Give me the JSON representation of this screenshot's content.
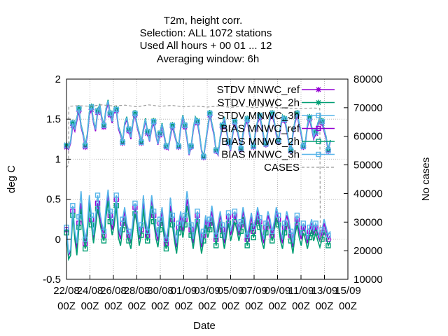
{
  "chart_data": {
    "type": "line",
    "title_lines": [
      "T2m, height corr.",
      "Selection: ALL    1072 stations",
      "Used  All hours  + 00 01 ... 12",
      "Averaging window:  6h"
    ],
    "xlabel": "Date",
    "ylabel": "deg C",
    "y2label": "No cases",
    "ylim": [
      -0.5,
      2
    ],
    "y_ticks": [
      "-0.5",
      "0",
      "0.5",
      "1",
      "1.5",
      "2"
    ],
    "y2lim": [
      10000,
      80000
    ],
    "y2_ticks": [
      "10000",
      "20000",
      "30000",
      "40000",
      "50000",
      "60000",
      "70000",
      "80000"
    ],
    "xlim": [
      0,
      48
    ],
    "x_ticks": [
      {
        "x": 0,
        "date": "22/08",
        "hour": "00Z"
      },
      {
        "x": 4,
        "date": "24/08",
        "hour": "00Z"
      },
      {
        "x": 8,
        "date": "26/08",
        "hour": "00Z"
      },
      {
        "x": 12,
        "date": "28/08",
        "hour": "00Z"
      },
      {
        "x": 16,
        "date": "30/08",
        "hour": "00Z"
      },
      {
        "x": 20,
        "date": "01/09",
        "hour": "00Z"
      },
      {
        "x": 24,
        "date": "03/09",
        "hour": "00Z"
      },
      {
        "x": 28,
        "date": "05/09",
        "hour": "00Z"
      },
      {
        "x": 32,
        "date": "07/09",
        "hour": "00Z"
      },
      {
        "x": 36,
        "date": "09/09",
        "hour": "00Z"
      },
      {
        "x": 40,
        "date": "11/09",
        "hour": "00Z"
      },
      {
        "x": 44,
        "date": "13/09",
        "hour": "00Z"
      },
      {
        "x": 48,
        "date": "15/09",
        "hour": "00Z"
      }
    ],
    "grid": true,
    "legend_position": "top-right",
    "series": [
      {
        "name": "STDV MNWC_ref",
        "axis": "y",
        "color": "#9400d3",
        "marker": "star",
        "values": [
          1.15,
          1.12,
          1.2,
          1.42,
          1.35,
          1.48,
          1.6,
          1.4,
          1.3,
          1.15,
          1.28,
          1.55,
          1.62,
          1.45,
          1.35,
          1.58,
          1.65,
          1.5,
          1.4,
          1.6,
          1.7,
          1.55,
          1.45,
          1.62,
          1.6,
          1.38,
          1.3,
          1.2,
          1.42,
          1.5,
          1.35,
          1.25,
          1.45,
          1.55,
          1.4,
          1.3,
          1.2,
          1.35,
          1.48,
          1.32,
          1.22,
          1.38,
          1.45,
          1.3,
          1.18,
          1.3,
          1.42,
          1.28,
          1.15,
          1.12,
          1.28,
          1.4,
          1.3,
          1.2,
          1.15,
          1.38,
          1.52,
          1.4,
          1.25,
          1.05,
          1.15,
          1.35,
          1.5,
          1.45,
          1.3,
          1.1,
          1.02,
          1.2,
          1.38,
          1.55,
          1.42,
          1.3,
          1.1,
          1.05,
          1.25,
          1.4,
          1.5,
          1.35,
          1.2,
          1.1,
          1.3,
          1.45,
          1.38,
          1.25,
          1.12,
          1.3,
          1.42,
          1.48,
          1.32,
          1.2,
          1.15,
          1.32,
          1.45,
          1.52,
          1.4,
          1.25,
          1.18,
          1.35,
          1.5,
          1.55,
          1.45,
          1.3,
          1.22,
          1.38,
          1.52,
          1.48,
          1.35,
          1.2,
          1.1,
          1.3,
          1.45,
          1.55,
          1.42,
          1.3,
          1.15,
          1.2,
          1.4,
          1.5,
          1.38,
          1.25,
          1.32,
          1.42,
          1.5,
          1.45,
          1.35,
          1.25,
          1.1,
          1.22
        ]
      },
      {
        "name": "STDV MNWC_2h",
        "axis": "y",
        "color": "#009e73",
        "marker": "star",
        "values": [
          1.18,
          1.14,
          1.23,
          1.46,
          1.38,
          1.52,
          1.64,
          1.43,
          1.33,
          1.18,
          1.31,
          1.59,
          1.66,
          1.48,
          1.38,
          1.61,
          1.69,
          1.53,
          1.43,
          1.63,
          1.74,
          1.58,
          1.48,
          1.65,
          1.63,
          1.41,
          1.33,
          1.22,
          1.45,
          1.53,
          1.38,
          1.28,
          1.48,
          1.58,
          1.43,
          1.33,
          1.22,
          1.38,
          1.51,
          1.35,
          1.24,
          1.41,
          1.48,
          1.33,
          1.2,
          1.33,
          1.45,
          1.31,
          1.17,
          1.14,
          1.31,
          1.43,
          1.33,
          1.22,
          1.17,
          1.41,
          1.55,
          1.43,
          1.28,
          1.07,
          1.17,
          1.38,
          1.53,
          1.48,
          1.33,
          1.12,
          1.04,
          1.22,
          1.41,
          1.58,
          1.45,
          1.33,
          1.12,
          1.07,
          1.28,
          1.43,
          1.53,
          1.38,
          1.22,
          1.12,
          1.33,
          1.48,
          1.41,
          1.28,
          1.14,
          1.33,
          1.45,
          1.51,
          1.35,
          1.22,
          1.17,
          1.35,
          1.48,
          1.55,
          1.43,
          1.28,
          1.2,
          1.38,
          1.53,
          1.58,
          1.48,
          1.33,
          1.24,
          1.41,
          1.55,
          1.51,
          1.38,
          1.22,
          1.12,
          1.33,
          1.48,
          1.58,
          1.45,
          1.33,
          1.17,
          1.22,
          1.43,
          1.53,
          1.41,
          1.28,
          1.35,
          1.45,
          1.53,
          1.48,
          1.38,
          1.28,
          1.12,
          1.24
        ]
      },
      {
        "name": "STDV MNWC_3h",
        "axis": "y",
        "color": "#56b4e9",
        "marker": "box",
        "values": [
          1.17,
          1.13,
          1.22,
          1.45,
          1.37,
          1.51,
          1.63,
          1.42,
          1.32,
          1.17,
          1.3,
          1.58,
          1.65,
          1.47,
          1.37,
          1.6,
          1.68,
          1.52,
          1.42,
          1.62,
          1.73,
          1.57,
          1.47,
          1.64,
          1.62,
          1.4,
          1.32,
          1.21,
          1.44,
          1.52,
          1.37,
          1.27,
          1.47,
          1.57,
          1.42,
          1.32,
          1.21,
          1.37,
          1.5,
          1.34,
          1.23,
          1.4,
          1.47,
          1.32,
          1.19,
          1.32,
          1.44,
          1.3,
          1.16,
          1.13,
          1.3,
          1.42,
          1.32,
          1.21,
          1.16,
          1.4,
          1.54,
          1.42,
          1.27,
          1.06,
          1.16,
          1.37,
          1.52,
          1.47,
          1.32,
          1.11,
          1.03,
          1.21,
          1.4,
          1.57,
          1.44,
          1.32,
          1.11,
          1.06,
          1.27,
          1.42,
          1.52,
          1.37,
          1.21,
          1.11,
          1.32,
          1.47,
          1.4,
          1.27,
          1.13,
          1.32,
          1.44,
          1.5,
          1.34,
          1.21,
          1.16,
          1.34,
          1.47,
          1.54,
          1.42,
          1.27,
          1.19,
          1.37,
          1.52,
          1.57,
          1.47,
          1.32,
          1.23,
          1.4,
          1.54,
          1.5,
          1.37,
          1.21,
          1.11,
          1.32,
          1.47,
          1.57,
          1.44,
          1.32,
          1.16,
          1.21,
          1.42,
          1.52,
          1.4,
          1.27,
          1.34,
          1.44,
          1.52,
          1.47,
          1.37,
          1.27,
          1.11,
          1.23
        ]
      },
      {
        "name": "BIAS MNWC_ref",
        "axis": "y",
        "color": "#9400d3",
        "marker": "box",
        "values": [
          0.12,
          -0.2,
          -0.15,
          0.35,
          0.05,
          -0.12,
          0.2,
          0.45,
          0.15,
          -0.05,
          0.1,
          0.5,
          0.25,
          0.0,
          0.22,
          0.45,
          0.3,
          0.15,
          0.05,
          0.35,
          0.55,
          0.3,
          0.12,
          0.25,
          0.5,
          0.1,
          0.0,
          0.2,
          0.35,
          0.15,
          0.05,
          -0.05,
          0.2,
          0.4,
          0.25,
          0.0,
          0.12,
          0.45,
          0.2,
          0.05,
          0.25,
          0.5,
          0.3,
          0.1,
          -0.02,
          0.2,
          0.35,
          0.1,
          -0.05,
          0.1,
          0.42,
          0.25,
          0.05,
          -0.1,
          0.15,
          0.3,
          0.1,
          0.25,
          0.5,
          0.35,
          0.12,
          -0.05,
          0.15,
          0.3,
          0.1,
          -0.1,
          0.05,
          0.25,
          0.1,
          0.2,
          0.35,
          0.18,
          0.0,
          0.15,
          0.3,
          0.12,
          -0.05,
          0.12,
          0.28,
          0.05,
          0.15,
          0.3,
          0.2,
          0.05,
          0.18,
          0.35,
          0.2,
          0.0,
          0.12,
          0.28,
          0.1,
          0.2,
          0.35,
          0.22,
          0.05,
          -0.05,
          0.15,
          0.3,
          0.2,
          0.05,
          0.18,
          0.35,
          0.25,
          0.05,
          -0.05,
          0.15,
          0.3,
          0.2,
          0.05,
          -0.1,
          0.12,
          0.25,
          0.1,
          0.0,
          0.15,
          0.08,
          -0.05,
          0.1,
          0.2,
          0.05,
          0.15,
          0.05,
          -0.02,
          0.08,
          0.2,
          0.1,
          0.0,
          0.05
        ]
      },
      {
        "name": "BIAS MNWC_2h",
        "axis": "y",
        "color": "#009e73",
        "marker": "box",
        "values": [
          0.08,
          -0.25,
          -0.2,
          0.3,
          0.0,
          -0.2,
          0.15,
          0.38,
          0.1,
          -0.12,
          0.05,
          0.45,
          0.18,
          -0.05,
          0.15,
          0.38,
          0.22,
          0.08,
          -0.02,
          0.28,
          0.48,
          0.22,
          0.05,
          0.18,
          0.42,
          0.02,
          -0.08,
          0.12,
          0.28,
          0.08,
          -0.02,
          -0.12,
          0.12,
          0.32,
          0.18,
          -0.08,
          0.05,
          0.38,
          0.12,
          -0.02,
          0.18,
          0.42,
          0.22,
          0.02,
          -0.1,
          0.12,
          0.28,
          0.02,
          -0.12,
          0.02,
          0.35,
          0.18,
          -0.02,
          -0.18,
          0.08,
          0.22,
          0.02,
          0.18,
          0.42,
          0.28,
          0.05,
          -0.12,
          0.08,
          0.22,
          0.02,
          -0.18,
          -0.02,
          0.18,
          0.02,
          0.12,
          0.28,
          0.1,
          -0.08,
          0.08,
          0.22,
          0.05,
          -0.12,
          0.05,
          0.2,
          -0.02,
          0.08,
          0.22,
          0.12,
          -0.02,
          0.1,
          0.28,
          0.12,
          -0.08,
          0.05,
          0.2,
          0.02,
          0.12,
          0.28,
          0.15,
          -0.02,
          -0.12,
          0.08,
          0.22,
          0.12,
          -0.02,
          0.1,
          0.28,
          0.18,
          -0.02,
          -0.12,
          0.08,
          0.22,
          0.12,
          -0.02,
          -0.18,
          0.05,
          0.18,
          0.02,
          -0.08,
          0.08,
          0.0,
          -0.12,
          0.02,
          0.12,
          -0.02,
          0.08,
          -0.02,
          -0.1,
          0.0,
          0.12,
          0.02,
          -0.08,
          -0.02
        ]
      },
      {
        "name": "BIAS MNWC_3h",
        "axis": "y",
        "color": "#56b4e9",
        "marker": "box",
        "values": [
          0.15,
          -0.18,
          -0.12,
          0.42,
          0.1,
          -0.05,
          0.28,
          0.6,
          0.2,
          0.0,
          0.15,
          0.55,
          0.3,
          0.05,
          0.28,
          0.55,
          0.35,
          0.2,
          0.1,
          0.4,
          0.62,
          0.35,
          0.18,
          0.3,
          0.55,
          0.15,
          0.05,
          0.25,
          0.4,
          0.2,
          0.1,
          0.0,
          0.25,
          0.45,
          0.3,
          0.05,
          0.18,
          0.55,
          0.25,
          0.1,
          0.3,
          0.55,
          0.35,
          0.15,
          0.03,
          0.25,
          0.4,
          0.15,
          0.0,
          0.15,
          0.52,
          0.3,
          0.1,
          -0.05,
          0.2,
          0.35,
          0.15,
          0.3,
          0.6,
          0.4,
          0.18,
          0.0,
          0.2,
          0.35,
          0.15,
          -0.05,
          0.1,
          0.3,
          0.15,
          0.25,
          0.42,
          0.22,
          0.05,
          0.2,
          0.35,
          0.18,
          0.0,
          0.18,
          0.33,
          0.1,
          0.2,
          0.35,
          0.25,
          0.1,
          0.22,
          0.4,
          0.25,
          0.05,
          0.18,
          0.33,
          0.15,
          0.25,
          0.4,
          0.27,
          0.1,
          0.0,
          0.2,
          0.35,
          0.25,
          0.1,
          0.22,
          0.4,
          0.3,
          0.1,
          0.0,
          0.2,
          0.35,
          0.25,
          0.1,
          -0.05,
          0.18,
          0.3,
          0.15,
          0.05,
          0.2,
          0.12,
          0.0,
          0.15,
          0.25,
          0.1,
          0.2,
          0.1,
          0.03,
          0.12,
          0.25,
          0.15,
          0.05,
          0.1
        ]
      },
      {
        "name": "CASES",
        "axis": "y2",
        "color": "#999999",
        "marker": "none",
        "dashed": true,
        "x": [
          0,
          0.35,
          0.4,
          2,
          4,
          6,
          8,
          10,
          12,
          14,
          16,
          18,
          20,
          22,
          24,
          26,
          28,
          30,
          32,
          34,
          36,
          38,
          40,
          42,
          43.2,
          43.25,
          43.3
        ],
        "values": [
          49000,
          50000,
          70500,
          70700,
          70500,
          71000,
          70600,
          70900,
          70300,
          71000,
          70500,
          70800,
          70300,
          70600,
          70200,
          70600,
          70100,
          70500,
          70000,
          70400,
          70000,
          69800,
          69700,
          69900,
          69800,
          49000,
          22500
        ]
      }
    ]
  }
}
